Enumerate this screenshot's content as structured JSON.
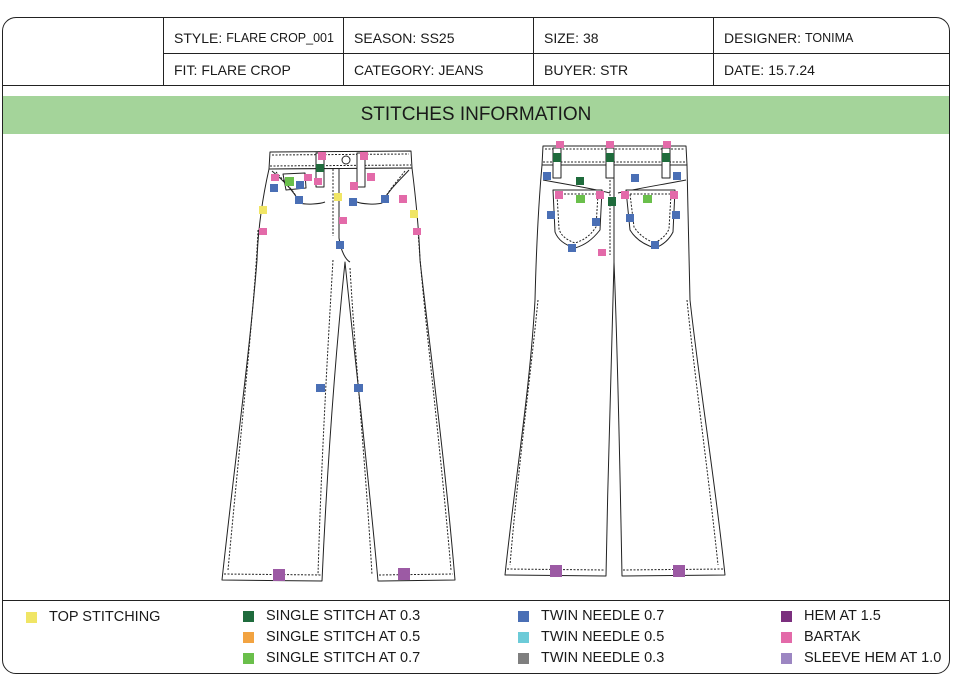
{
  "header": {
    "style": {
      "key": "STYLE:",
      "value": "FLARE CROP_001"
    },
    "fit": {
      "key": "FIT:",
      "value": "FLARE CROP"
    },
    "season": {
      "key": "SEASON:",
      "value": "SS25"
    },
    "category": {
      "key": "CATEGORY:",
      "value": "JEANS"
    },
    "size": {
      "key": "SIZE:",
      "value": "38"
    },
    "buyer": {
      "key": "BUYER:",
      "value": "STR"
    },
    "designer": {
      "key": "DESIGNER:",
      "value": "TONIMA"
    },
    "date": {
      "key": "DATE:",
      "value": "15.7.24"
    }
  },
  "section_title": "STITCHES INFORMATION",
  "legend": [
    {
      "label": "TOP STITCHING",
      "color": "#f0e565"
    },
    {
      "label": "SINGLE STITCH AT 0.3",
      "color": "#1f6b3c"
    },
    {
      "label": "SINGLE STITCH AT 0.5",
      "color": "#f2a341"
    },
    {
      "label": "SINGLE STITCH AT 0.7",
      "color": "#6abf4b"
    },
    {
      "label": "TWIN NEEDLE 0.7",
      "color": "#4a6fb5"
    },
    {
      "label": "TWIN NEEDLE 0.5",
      "color": "#6ccbd8"
    },
    {
      "label": "TWIN NEEDLE 0.3",
      "color": "#7f7f7f"
    },
    {
      "label": "HEM AT 1.5",
      "color": "#7b2f7e"
    },
    {
      "label": "BARTAK",
      "color": "#e36aa9"
    },
    {
      "label": "SLEEVE HEM AT 1.0",
      "color": "#9c86c2"
    }
  ]
}
